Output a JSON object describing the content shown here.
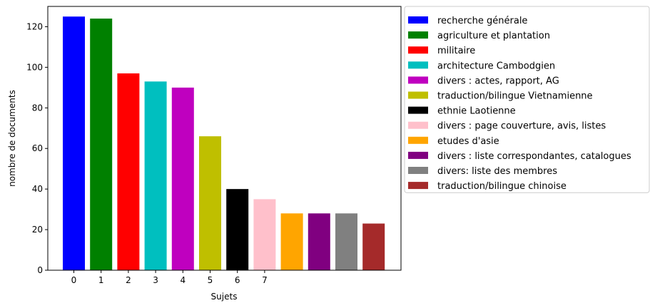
{
  "chart_data": {
    "type": "bar",
    "title": "",
    "xlabel": "Sujets",
    "ylabel": "nombre de documents",
    "ylim": [
      0,
      130
    ],
    "y_ticks": [
      0,
      20,
      40,
      60,
      80,
      100,
      120
    ],
    "x_tick_labels": [
      "0",
      "1",
      "2",
      "3",
      "4",
      "5",
      "6",
      "7"
    ],
    "grid": false,
    "legend_position": "outside-right",
    "bars": [
      {
        "label": "recherche générale",
        "value": 125,
        "color": "#0000ff"
      },
      {
        "label": "agriculture et plantation",
        "value": 124,
        "color": "#008000"
      },
      {
        "label": "militaire",
        "value": 97,
        "color": "#ff0000"
      },
      {
        "label": "architecture Cambodgien",
        "value": 93,
        "color": "#00bfbf"
      },
      {
        "label": "divers : actes, rapport, AG",
        "value": 90,
        "color": "#bf00bf"
      },
      {
        "label": "traduction/bilingue Vietnamienne",
        "value": 66,
        "color": "#bfbf00"
      },
      {
        "label": "ethnie Laotienne",
        "value": 40,
        "color": "#000000"
      },
      {
        "label": "divers : page couverture, avis, listes",
        "value": 35,
        "color": "#ffc0cb"
      },
      {
        "label": "etudes d'asie",
        "value": 28,
        "color": "#ffa500"
      },
      {
        "label": "divers : liste correspondantes, catalogues",
        "value": 28,
        "color": "#800080"
      },
      {
        "label": "divers: liste des membres",
        "value": 28,
        "color": "#808080"
      },
      {
        "label": "traduction/bilingue chinoise",
        "value": 23,
        "color": "#a52a2a"
      }
    ]
  }
}
